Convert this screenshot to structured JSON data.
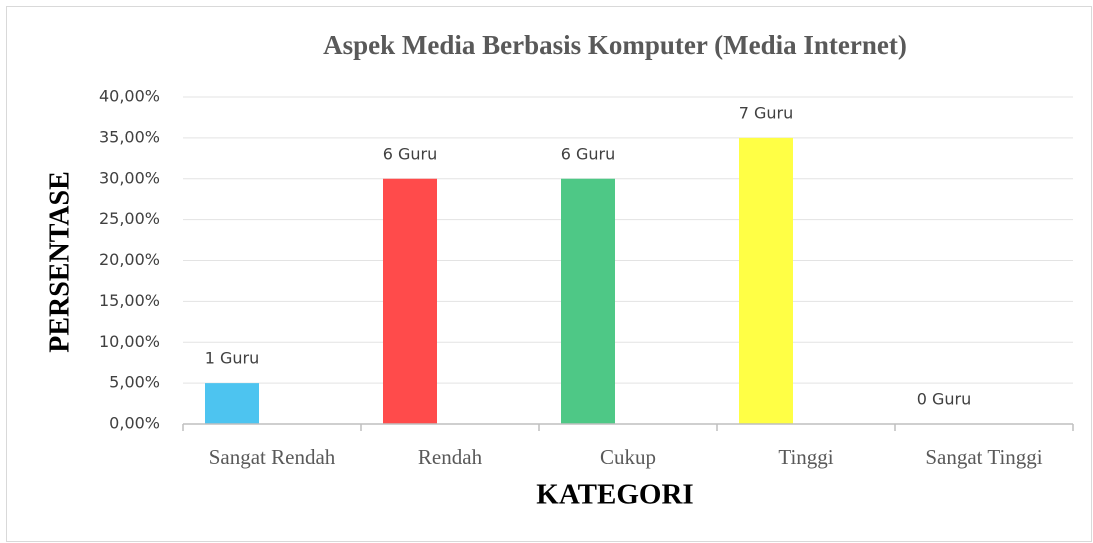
{
  "chart_data": {
    "type": "bar",
    "title": "Aspek  Media Berbasis Komputer (Media Internet)",
    "x_label": "KATEGORI",
    "y_label": "PERSENTASE",
    "categories": [
      "Sangat Rendah",
      "Rendah",
      "Cukup",
      "Tinggi",
      "Sangat Tinggi"
    ],
    "values": [
      5,
      30,
      30,
      35,
      0
    ],
    "annotations": [
      "1 Guru",
      "6 Guru",
      "6 Guru",
      "7 Guru",
      "0 Guru"
    ],
    "colors": [
      "#4dc4f0",
      "#ff4b4b",
      "#4ec886",
      "#ffff45",
      "#a5a5a5"
    ],
    "ylim": [
      0,
      40
    ],
    "yticks": [
      {
        "value": 0,
        "label": "0,00%"
      },
      {
        "value": 5,
        "label": "5,00%"
      },
      {
        "value": 10,
        "label": "10,00%"
      },
      {
        "value": 15,
        "label": "15,00%"
      },
      {
        "value": 20,
        "label": "20,00%"
      },
      {
        "value": 25,
        "label": "25,00%"
      },
      {
        "value": 30,
        "label": "30,00%"
      },
      {
        "value": 35,
        "label": "35,00%"
      },
      {
        "value": 40,
        "label": "40,00%"
      }
    ],
    "grid": true
  }
}
